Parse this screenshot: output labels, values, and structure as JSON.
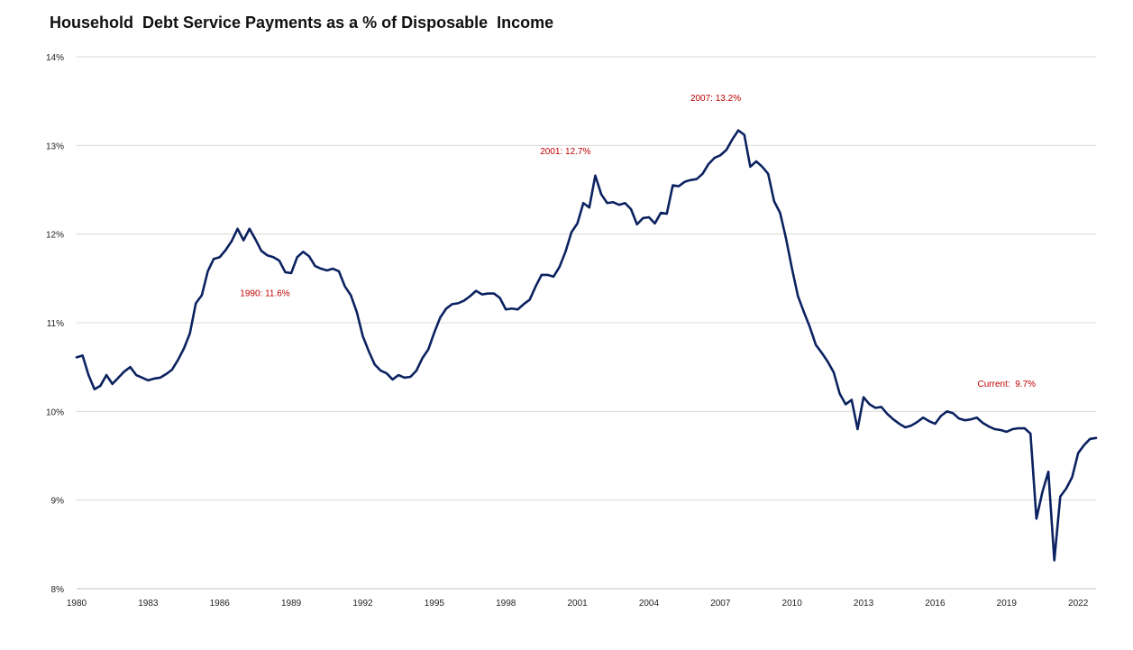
{
  "chart_data": {
    "type": "line",
    "title": "Household  Debt Service Payments as a % of Disposable  Income",
    "xlabel": "",
    "ylabel": "",
    "ylim": [
      8,
      14
    ],
    "xlim": [
      1980,
      2022.75
    ],
    "grid": true,
    "y_ticks": [
      "8%",
      "9%",
      "10%",
      "11%",
      "12%",
      "13%",
      "14%"
    ],
    "x_ticks": [
      "1980",
      "1983",
      "1986",
      "1989",
      "1992",
      "1995",
      "1998",
      "2001",
      "2004",
      "2007",
      "2010",
      "2013",
      "2016",
      "2019",
      "2022"
    ],
    "line_color": "#0b2260",
    "annotation_color": "#c00000",
    "annotations": [
      {
        "text": "1990: 11.6%",
        "x": 1987.9,
        "y": 11.3
      },
      {
        "text": "2001: 12.7%",
        "x": 2000.5,
        "y": 12.9
      },
      {
        "text": "2007: 13.2%",
        "x": 2006.8,
        "y": 13.5
      },
      {
        "text": "Current:  9.7%",
        "x": 2019.0,
        "y": 10.28
      }
    ],
    "series": [
      {
        "x": [
          1980.0,
          1980.25,
          1980.5,
          1980.75,
          1981.0,
          1981.25,
          1981.5,
          1981.75,
          1982.0,
          1982.25,
          1982.5,
          1982.75,
          1983.0,
          1983.25,
          1983.5,
          1983.75,
          1984.0,
          1984.25,
          1984.5,
          1984.75,
          1985.0,
          1985.25,
          1985.5,
          1985.75,
          1986.0,
          1986.25,
          1986.5,
          1986.75,
          1987.0,
          1987.25,
          1987.5,
          1987.75,
          1988.0,
          1988.25,
          1988.5,
          1988.75,
          1989.0,
          1989.25,
          1989.5,
          1989.75,
          1990.0,
          1990.25,
          1990.5,
          1990.75,
          1991.0,
          1991.25,
          1991.5,
          1991.75,
          1992.0,
          1992.25,
          1992.5,
          1992.75,
          1993.0,
          1993.25,
          1993.5,
          1993.75,
          1994.0,
          1994.25,
          1994.5,
          1994.75,
          1995.0,
          1995.25,
          1995.5,
          1995.75,
          1996.0,
          1996.25,
          1996.5,
          1996.75,
          1997.0,
          1997.25,
          1997.5,
          1997.75,
          1998.0,
          1998.25,
          1998.5,
          1998.75,
          1999.0,
          1999.25,
          1999.5,
          1999.75,
          2000.0,
          2000.25,
          2000.5,
          2000.75,
          2001.0,
          2001.25,
          2001.5,
          2001.75,
          2002.0,
          2002.25,
          2002.5,
          2002.75,
          2003.0,
          2003.25,
          2003.5,
          2003.75,
          2004.0,
          2004.25,
          2004.5,
          2004.75,
          2005.0,
          2005.25,
          2005.5,
          2005.75,
          2006.0,
          2006.25,
          2006.5,
          2006.75,
          2007.0,
          2007.25,
          2007.5,
          2007.75,
          2008.0,
          2008.25,
          2008.5,
          2008.75,
          2009.0,
          2009.25,
          2009.5,
          2009.75,
          2010.0,
          2010.25,
          2010.5,
          2010.75,
          2011.0,
          2011.25,
          2011.5,
          2011.75,
          2012.0,
          2012.25,
          2012.5,
          2012.75,
          2013.0,
          2013.25,
          2013.5,
          2013.75,
          2014.0,
          2014.25,
          2014.5,
          2014.75,
          2015.0,
          2015.25,
          2015.5,
          2015.75,
          2016.0,
          2016.25,
          2016.5,
          2016.75,
          2017.0,
          2017.25,
          2017.5,
          2017.75,
          2018.0,
          2018.25,
          2018.5,
          2018.75,
          2019.0,
          2019.25,
          2019.5,
          2019.75,
          2020.0,
          2020.25,
          2020.5,
          2020.75,
          2021.0,
          2021.25,
          2021.5,
          2021.75,
          2022.0,
          2022.25,
          2022.5,
          2022.75
        ],
        "values": [
          10.61,
          10.63,
          10.41,
          10.25,
          10.29,
          10.41,
          10.31,
          10.38,
          10.45,
          10.5,
          10.41,
          10.38,
          10.35,
          10.37,
          10.38,
          10.42,
          10.47,
          10.58,
          10.71,
          10.88,
          11.22,
          11.31,
          11.58,
          11.72,
          11.74,
          11.82,
          11.92,
          12.06,
          11.93,
          12.06,
          11.94,
          11.81,
          11.76,
          11.74,
          11.7,
          11.57,
          11.56,
          11.74,
          11.8,
          11.75,
          11.64,
          11.61,
          11.59,
          11.61,
          11.58,
          11.41,
          11.31,
          11.12,
          10.85,
          10.68,
          10.53,
          10.46,
          10.43,
          10.36,
          10.41,
          10.38,
          10.39,
          10.46,
          10.6,
          10.7,
          10.89,
          11.06,
          11.16,
          11.21,
          11.22,
          11.25,
          11.3,
          11.36,
          11.32,
          11.33,
          11.33,
          11.28,
          11.15,
          11.16,
          11.15,
          11.21,
          11.26,
          11.41,
          11.54,
          11.54,
          11.52,
          11.63,
          11.8,
          12.02,
          12.12,
          12.35,
          12.3,
          12.66,
          12.45,
          12.35,
          12.36,
          12.33,
          12.35,
          12.28,
          12.11,
          12.18,
          12.19,
          12.12,
          12.24,
          12.23,
          12.55,
          12.54,
          12.59,
          12.61,
          12.62,
          12.68,
          12.79,
          12.86,
          12.89,
          12.95,
          13.07,
          13.17,
          13.12,
          12.76,
          12.82,
          12.76,
          12.68,
          12.37,
          12.24,
          11.95,
          11.61,
          11.3,
          11.12,
          10.95,
          10.75,
          10.66,
          10.56,
          10.44,
          10.2,
          10.08,
          10.13,
          9.8,
          10.16,
          10.08,
          10.04,
          10.05,
          9.97,
          9.91,
          9.86,
          9.82,
          9.84,
          9.88,
          9.93,
          9.89,
          9.86,
          9.95,
          10.0,
          9.98,
          9.92,
          9.9,
          9.91,
          9.93,
          9.87,
          9.83,
          9.8,
          9.79,
          9.77,
          9.8,
          9.81,
          9.81,
          9.75,
          8.79,
          9.09,
          9.32,
          8.32,
          9.04,
          9.13,
          9.26,
          9.53,
          9.62,
          9.69,
          9.7
        ]
      }
    ]
  }
}
